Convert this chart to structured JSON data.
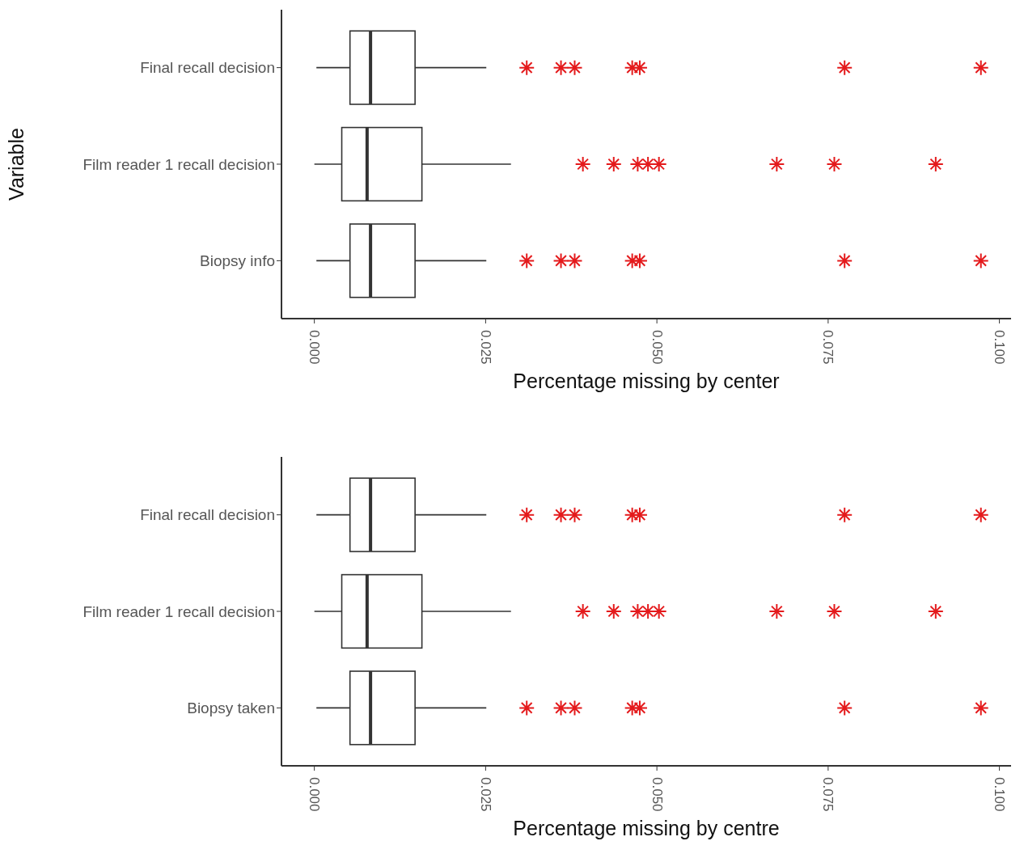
{
  "chart_data": [
    {
      "type": "box",
      "orientation": "horizontal",
      "ylabel": "Variable",
      "xlabel": "Percentage missing by center",
      "categories": [
        "Final recall decision",
        "Film reader 1 recall decision",
        "Biopsy info"
      ],
      "xlim": [
        -0.0048,
        0.1017
      ],
      "xticks": [
        {
          "value": 0,
          "label": "0.000"
        },
        {
          "value": 0.025,
          "label": "0.025"
        },
        {
          "value": 0.05,
          "label": "0.050"
        },
        {
          "value": 0.075,
          "label": "0.075"
        },
        {
          "value": 0.1,
          "label": "0.100"
        }
      ],
      "grid": false,
      "marker": "star",
      "series": [
        {
          "color": "#333333",
          "boxes": [
            {
              "low": 0.0003,
              "q1": 0.0052,
              "median": 0.0082,
              "q3": 0.0147,
              "high": 0.0251,
              "outliers": [
                0.031,
                0.036,
                0.038,
                0.0464,
                0.0475,
                0.0774,
                0.0973
              ]
            },
            {
              "low": 0.0,
              "q1": 0.004,
              "median": 0.0077,
              "q3": 0.0157,
              "high": 0.0287,
              "outliers": [
                0.0392,
                0.0437,
                0.0472,
                0.0487,
                0.0503,
                0.0675,
                0.0759,
                0.0907
              ]
            },
            {
              "low": 0.0003,
              "q1": 0.0052,
              "median": 0.0082,
              "q3": 0.0147,
              "high": 0.0251,
              "outliers": [
                0.031,
                0.036,
                0.038,
                0.0464,
                0.0475,
                0.0774,
                0.0973
              ]
            }
          ]
        }
      ]
    },
    {
      "type": "box",
      "orientation": "horizontal",
      "xlabel": "Percentage missing by centre",
      "categories": [
        "Final recall decision",
        "Film reader 1 recall decision",
        "Biopsy taken"
      ],
      "xlim": [
        -0.0048,
        0.1017
      ],
      "xticks": [
        {
          "value": 0,
          "label": "0.000"
        },
        {
          "value": 0.025,
          "label": "0.025"
        },
        {
          "value": 0.05,
          "label": "0.050"
        },
        {
          "value": 0.075,
          "label": "0.075"
        },
        {
          "value": 0.1,
          "label": "0.100"
        }
      ],
      "grid": false,
      "marker": "star",
      "series": [
        {
          "color": "#333333",
          "boxes": [
            {
              "low": 0.0003,
              "q1": 0.0052,
              "median": 0.0082,
              "q3": 0.0147,
              "high": 0.0251,
              "outliers": [
                0.031,
                0.036,
                0.038,
                0.0464,
                0.0475,
                0.0774,
                0.0973
              ]
            },
            {
              "low": 0.0,
              "q1": 0.004,
              "median": 0.0077,
              "q3": 0.0157,
              "high": 0.0287,
              "outliers": [
                0.0392,
                0.0437,
                0.0472,
                0.0487,
                0.0503,
                0.0675,
                0.0759,
                0.0907
              ]
            },
            {
              "low": 0.0003,
              "q1": 0.0052,
              "median": 0.0082,
              "q3": 0.0147,
              "high": 0.0251,
              "outliers": [
                0.031,
                0.036,
                0.038,
                0.0464,
                0.0475,
                0.0774,
                0.0973
              ]
            }
          ]
        }
      ]
    }
  ]
}
